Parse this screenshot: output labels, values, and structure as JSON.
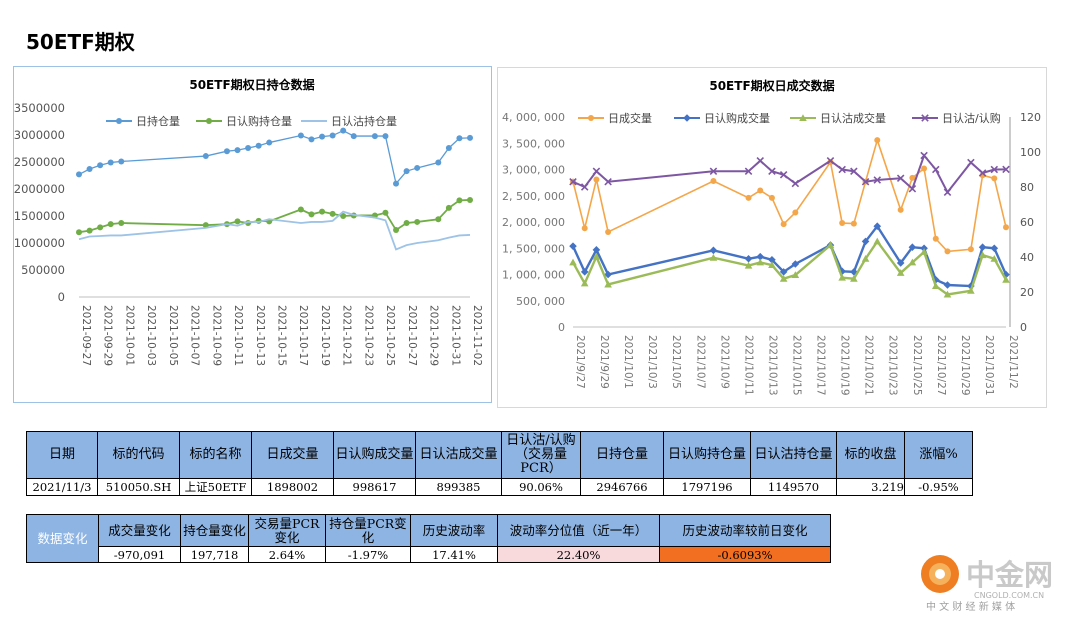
{
  "page": {
    "title": "50ETF期权"
  },
  "chart_data": [
    {
      "type": "line",
      "title": "50ETF期权日持仓数据",
      "legend": [
        "日持仓量",
        "日认购持仓量",
        "日认沽持仓量"
      ],
      "legend_position": "top",
      "ylim": [
        0,
        3500000
      ],
      "yticks": [
        "3500000",
        "3000000",
        "2500000",
        "2000000",
        "1500000",
        "1000000",
        "500000",
        "0"
      ],
      "xticks": [
        "2021-09-27",
        "2021-09-29",
        "2021-10-01",
        "2021-10-03",
        "2021-10-05",
        "2021-10-07",
        "2021-10-09",
        "2021-10-11",
        "2021-10-13",
        "2021-10-15",
        "2021-10-17",
        "2021-10-19",
        "2021-10-21",
        "2021-10-23",
        "2021-10-25",
        "2021-10-27",
        "2021-10-29",
        "2021-10-31",
        "2021-11-02"
      ],
      "x_day_range": [
        0,
        37
      ],
      "series": [
        {
          "name": "日持仓量",
          "color": "#5b9bd5",
          "days": [
            0,
            1,
            2,
            3,
            4,
            12,
            14,
            15,
            16,
            17,
            18,
            21,
            22,
            23,
            24,
            25,
            26,
            28,
            29,
            30,
            31,
            32,
            34,
            35,
            36,
            37
          ],
          "values": [
            2270000,
            2370000,
            2440000,
            2490000,
            2510000,
            2610000,
            2700000,
            2720000,
            2760000,
            2800000,
            2860000,
            2990000,
            2920000,
            2970000,
            2990000,
            3080000,
            2980000,
            2980000,
            2980000,
            2100000,
            2330000,
            2390000,
            2490000,
            2760000,
            2940000,
            2946766
          ]
        },
        {
          "name": "日认购持仓量",
          "color": "#70ad47",
          "days": [
            0,
            1,
            2,
            3,
            4,
            12,
            14,
            15,
            16,
            17,
            18,
            21,
            22,
            23,
            24,
            25,
            26,
            28,
            29,
            30,
            31,
            32,
            34,
            35,
            36,
            37
          ],
          "values": [
            1200000,
            1230000,
            1290000,
            1350000,
            1370000,
            1330000,
            1350000,
            1400000,
            1370000,
            1410000,
            1400000,
            1620000,
            1530000,
            1580000,
            1540000,
            1500000,
            1510000,
            1510000,
            1560000,
            1240000,
            1370000,
            1390000,
            1440000,
            1650000,
            1790000,
            1797196
          ]
        },
        {
          "name": "日认沽持仓量",
          "color": "#9dc3e6",
          "days": [
            0,
            1,
            2,
            3,
            4,
            12,
            14,
            15,
            16,
            17,
            18,
            21,
            22,
            23,
            24,
            25,
            26,
            28,
            29,
            30,
            31,
            32,
            34,
            35,
            36,
            37
          ],
          "values": [
            1070000,
            1120000,
            1130000,
            1140000,
            1140000,
            1280000,
            1350000,
            1320000,
            1390000,
            1390000,
            1440000,
            1370000,
            1390000,
            1390000,
            1410000,
            1580000,
            1520000,
            1470000,
            1420000,
            880000,
            960000,
            1000000,
            1050000,
            1100000,
            1140000,
            1149570
          ]
        }
      ]
    },
    {
      "type": "line",
      "title": "50ETF期权日成交数据",
      "legend": [
        "日成交量",
        "日认购成交量",
        "日认沽成交量",
        "日认沽/认购"
      ],
      "legend_position": "top",
      "ylim": [
        0,
        4000000
      ],
      "yticks": [
        "4, 000, 000",
        "3, 500, 000",
        "3, 000, 000",
        "2, 500, 000",
        "2, 000, 000",
        "1, 500, 000",
        "1, 000, 000",
        "500, 000",
        "0"
      ],
      "y2lim": [
        0,
        120
      ],
      "y2ticks": [
        "120",
        "100",
        "80",
        "60",
        "40",
        "20",
        "0"
      ],
      "xticks": [
        "2021/9/27",
        "2021/9/29",
        "2021/10/1",
        "2021/10/3",
        "2021/10/5",
        "2021/10/7",
        "2021/10/9",
        "2021/10/11",
        "2021/10/13",
        "2021/10/15",
        "2021/10/17",
        "2021/10/19",
        "2021/10/21",
        "2021/10/23",
        "2021/10/25",
        "2021/10/27",
        "2021/10/29",
        "2021/10/31",
        "2021/11/2"
      ],
      "x_day_range": [
        0,
        37
      ],
      "series": [
        {
          "name": "日成交量",
          "color": "#f4a64a",
          "axis": "left",
          "days": [
            0,
            1,
            2,
            3,
            12,
            15,
            16,
            17,
            18,
            19,
            22,
            23,
            24,
            25,
            26,
            28,
            29,
            30,
            31,
            32,
            34,
            35,
            36,
            37
          ],
          "values": [
            2770000,
            1880000,
            2810000,
            1810000,
            2780000,
            2460000,
            2600000,
            2460000,
            1960000,
            2180000,
            3140000,
            1980000,
            1970000,
            2770000,
            3560000,
            2230000,
            2840000,
            3020000,
            1680000,
            1440000,
            1480000,
            2890000,
            2830000,
            1900000
          ]
        },
        {
          "name": "日认购成交量",
          "color": "#4472c4",
          "axis": "left",
          "days": [
            0,
            1,
            2,
            3,
            12,
            15,
            16,
            17,
            18,
            19,
            22,
            23,
            24,
            25,
            26,
            28,
            29,
            30,
            31,
            32,
            34,
            35,
            36,
            37
          ],
          "values": [
            1540000,
            1050000,
            1470000,
            1000000,
            1460000,
            1300000,
            1340000,
            1280000,
            1050000,
            1200000,
            1560000,
            1060000,
            1050000,
            1630000,
            1920000,
            1220000,
            1520000,
            1500000,
            900000,
            800000,
            780000,
            1520000,
            1500000,
            998617
          ]
        },
        {
          "name": "日认沽成交量",
          "color": "#9bbb59",
          "axis": "left",
          "days": [
            0,
            1,
            2,
            3,
            12,
            15,
            16,
            17,
            18,
            19,
            22,
            23,
            24,
            25,
            26,
            28,
            29,
            30,
            31,
            32,
            34,
            35,
            36,
            37
          ],
          "values": [
            1230000,
            830000,
            1340000,
            810000,
            1320000,
            1170000,
            1230000,
            1180000,
            920000,
            990000,
            1560000,
            940000,
            920000,
            1300000,
            1630000,
            1030000,
            1230000,
            1430000,
            780000,
            620000,
            690000,
            1370000,
            1300000,
            899385
          ]
        },
        {
          "name": "日认沽/认购",
          "color": "#7e57a3",
          "axis": "right",
          "days": [
            0,
            1,
            2,
            3,
            12,
            15,
            16,
            17,
            18,
            19,
            22,
            23,
            24,
            25,
            26,
            28,
            29,
            30,
            31,
            32,
            34,
            35,
            36,
            37
          ],
          "values": [
            83,
            80,
            89,
            83,
            89,
            89,
            95,
            89,
            87,
            82,
            95,
            90,
            89,
            83,
            84,
            85,
            79,
            98,
            90,
            77,
            94,
            88,
            90,
            90.06
          ]
        }
      ]
    }
  ],
  "table_main": {
    "headers": [
      "日期",
      "标的代码",
      "标的名称",
      "日成交量",
      "日认购成交量",
      "日认沽成交量",
      "日认沽/认购（交易量PCR）",
      "日持仓量",
      "日认购持仓量",
      "日认沽持仓量",
      "标的收盘",
      "涨幅%"
    ],
    "values": [
      "2021/11/3",
      "510050.SH",
      "上证50ETF",
      "1898002",
      "998617",
      "899385",
      "90.06%",
      "2946766",
      "1797196",
      "1149570",
      "3.219",
      "-0.95%"
    ]
  },
  "table_change": {
    "row_label": "数据变化",
    "headers": [
      "成交量变化",
      "持仓量变化",
      "交易量PCR变化",
      "持仓量PCR变化",
      "历史波动率",
      "波动率分位值（近一年）",
      "历史波动率较前日变化"
    ],
    "values": [
      "-970,091",
      "197,718",
      "2.64%",
      "-1.97%",
      "17.41%",
      "22.40%",
      "-0.6093%"
    ],
    "highlight": {
      "pink": "#f8d9dc",
      "orange": "#f26f21"
    }
  },
  "logo": {
    "name": "中金网",
    "domain": "CNGOLD.COM.CN",
    "tagline": "中 文 财 经 新 媒 体"
  }
}
